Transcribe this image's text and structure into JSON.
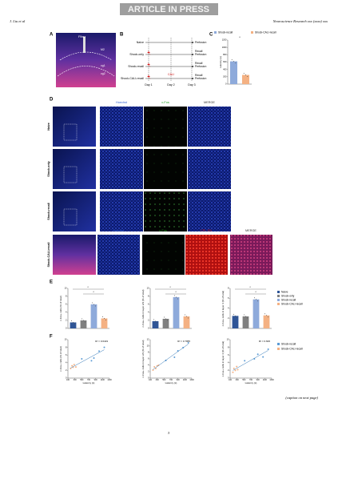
{
  "header": {
    "banner": "ARTICLE IN PRESS",
    "authors": "J. Liu et al",
    "journal": "Neuroscience Research xxx (xxxx) xxx"
  },
  "figure": {
    "panel_labels": [
      "A",
      "B",
      "C",
      "D",
      "E",
      "F"
    ],
    "panel_a": {
      "labels": [
        "Fiber",
        "M2",
        "cg1",
        "cg2"
      ]
    },
    "panel_b": {
      "groups": [
        "Naive",
        "Shock-only",
        "Shock-recall",
        "Shock-CALI-recall"
      ],
      "days": [
        "Day 1",
        "Day 2",
        "Day 3"
      ],
      "perfusion": "Perfusion",
      "recall": "Recall",
      "cali": "CALI"
    },
    "panel_c": {
      "ylabel": "Latency (s)",
      "legend": [
        "Shock-recall",
        "Shock-CALI-recall"
      ],
      "colors": [
        "#8eaadb",
        "#f4b183"
      ],
      "values": [
        620,
        250
      ],
      "ylim": [
        0,
        1200
      ],
      "yticks": [
        0,
        200,
        400,
        600,
        800,
        1000,
        1200
      ],
      "significance": "*"
    },
    "panel_d": {
      "columns": [
        "Hoechst",
        "c-Fos",
        "MERGE"
      ],
      "rows": [
        "Naive",
        "Shock-only",
        "Shock-recall",
        "Shock-CALI-recall"
      ],
      "last_columns": [
        "Hoechst",
        "c-Fos",
        "CPL-SN",
        "MERGE"
      ]
    },
    "panel_e": {
      "legend": [
        "Naive",
        "Shock-only",
        "Shock-recall",
        "Shock-CALI-recall"
      ],
      "colors": [
        "#2f5597",
        "#7f7f7f",
        "#8eaadb",
        "#f4b183"
      ],
      "significance": "*",
      "charts": [
        {
          "ylabel": "c-Fos+ cells (% of total)",
          "ylim": [
            0,
            10
          ],
          "yticks": [
            0,
            2,
            4,
            6,
            8,
            10
          ],
          "values": [
            1.5,
            2,
            6,
            2.5
          ]
        },
        {
          "ylabel": "c-Fos+ cells in layer 2/3 (% of total)",
          "ylim": [
            0,
            10
          ],
          "yticks": [
            0,
            2,
            4,
            6,
            8,
            10
          ],
          "values": [
            1.8,
            2.4,
            7.8,
            3
          ]
        },
        {
          "ylabel": "c-Fos+ cells in layer 4 (% of total)",
          "ylim": [
            0,
            8
          ],
          "yticks": [
            0,
            2,
            4,
            6,
            8
          ],
          "values": [
            2.5,
            2.4,
            5.8,
            2.6
          ]
        }
      ]
    },
    "panel_f": {
      "legend": [
        "Shock-recall",
        "Shock-CALI-recall"
      ],
      "colors": [
        "#5b9bd5",
        "#f4b183"
      ],
      "xlabel": "Latency (s)",
      "charts": [
        {
          "ylabel": "c-Fos+ cells (% of total)",
          "r2": "R² = 0.6419",
          "xlim": [
            100,
            1300
          ],
          "xticks": [
            100,
            300,
            500,
            700,
            900,
            1100,
            1300
          ],
          "ylim": [
            0,
            10
          ],
          "yticks": [
            0,
            2,
            4,
            6,
            8,
            10
          ],
          "series": [
            {
              "x": [
                500,
                780,
                850,
                1000,
                1150
              ],
              "y": [
                5,
                4.5,
                5.2,
                7,
                8
              ]
            },
            {
              "x": [
                180,
                220,
                250,
                280,
                330
              ],
              "y": [
                2.5,
                3.2,
                2.8,
                3.5,
                2.9
              ]
            }
          ]
        },
        {
          "ylabel": "c-Fos+ cells in layer 2/3 (% of total)",
          "r2": "R² = 0.7955",
          "xlim": [
            100,
            1300
          ],
          "xticks": [
            100,
            300,
            500,
            700,
            900,
            1100,
            1300
          ],
          "ylim": [
            0,
            12
          ],
          "yticks": [
            0,
            2,
            4,
            6,
            8,
            10,
            12
          ],
          "series": [
            {
              "x": [
                550,
                800,
                900,
                1050,
                1200
              ],
              "y": [
                5.5,
                6.5,
                8.5,
                9.5,
                11
              ]
            },
            {
              "x": [
                180,
                220,
                260,
                300,
                340
              ],
              "y": [
                2.5,
                3.5,
                3,
                3.8,
                4
              ]
            }
          ]
        },
        {
          "ylabel": "c-Fos+ cells in layer 4 (% of total)",
          "r2": "R² = 0.606",
          "xlim": [
            100,
            1300
          ],
          "xticks": [
            100,
            300,
            500,
            700,
            900,
            1100,
            1300
          ],
          "ylim": [
            0,
            10
          ],
          "yticks": [
            0,
            2,
            4,
            6,
            8,
            10
          ],
          "series": [
            {
              "x": [
                520,
                800,
                900,
                1050,
                1200
              ],
              "y": [
                4.5,
                5,
                6.2,
                5.5,
                7.5
              ]
            },
            {
              "x": [
                180,
                210,
                250,
                290,
                320
              ],
              "y": [
                1.5,
                2.5,
                2,
                3,
                2.2
              ]
            }
          ]
        }
      ]
    }
  },
  "footer": {
    "caption_note": "(caption on next page)",
    "page_number": "3"
  }
}
